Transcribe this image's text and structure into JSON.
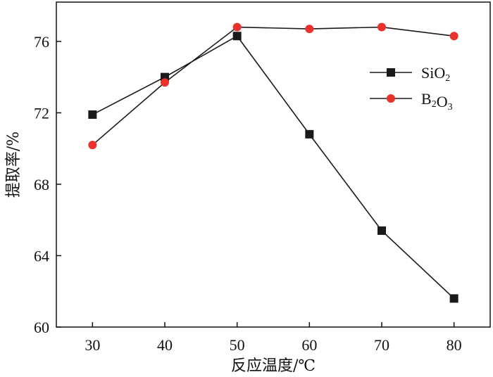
{
  "chart_data": {
    "type": "line",
    "x": [
      30,
      40,
      50,
      60,
      70,
      80
    ],
    "series": [
      {
        "name": "SiO2",
        "marker": "square",
        "color": "#1a1a1a",
        "markerColor": "#1a1a1a",
        "values": [
          71.9,
          74.0,
          76.3,
          70.8,
          65.4,
          61.6
        ]
      },
      {
        "name": "B2O3",
        "marker": "circle",
        "color": "#1a1a1a",
        "markerColor": "#e8322b",
        "values": [
          70.2,
          73.7,
          76.8,
          76.7,
          76.8,
          76.3
        ]
      }
    ],
    "xlabel": "反应温度/℃",
    "ylabel": "提取率/%",
    "xlim": [
      25,
      85
    ],
    "ylim": [
      60,
      78.2
    ],
    "xticks": [
      30,
      40,
      50,
      60,
      70,
      80
    ],
    "yticks": [
      60,
      64,
      68,
      72,
      76
    ],
    "grid": false,
    "legend_position": "top-right"
  }
}
